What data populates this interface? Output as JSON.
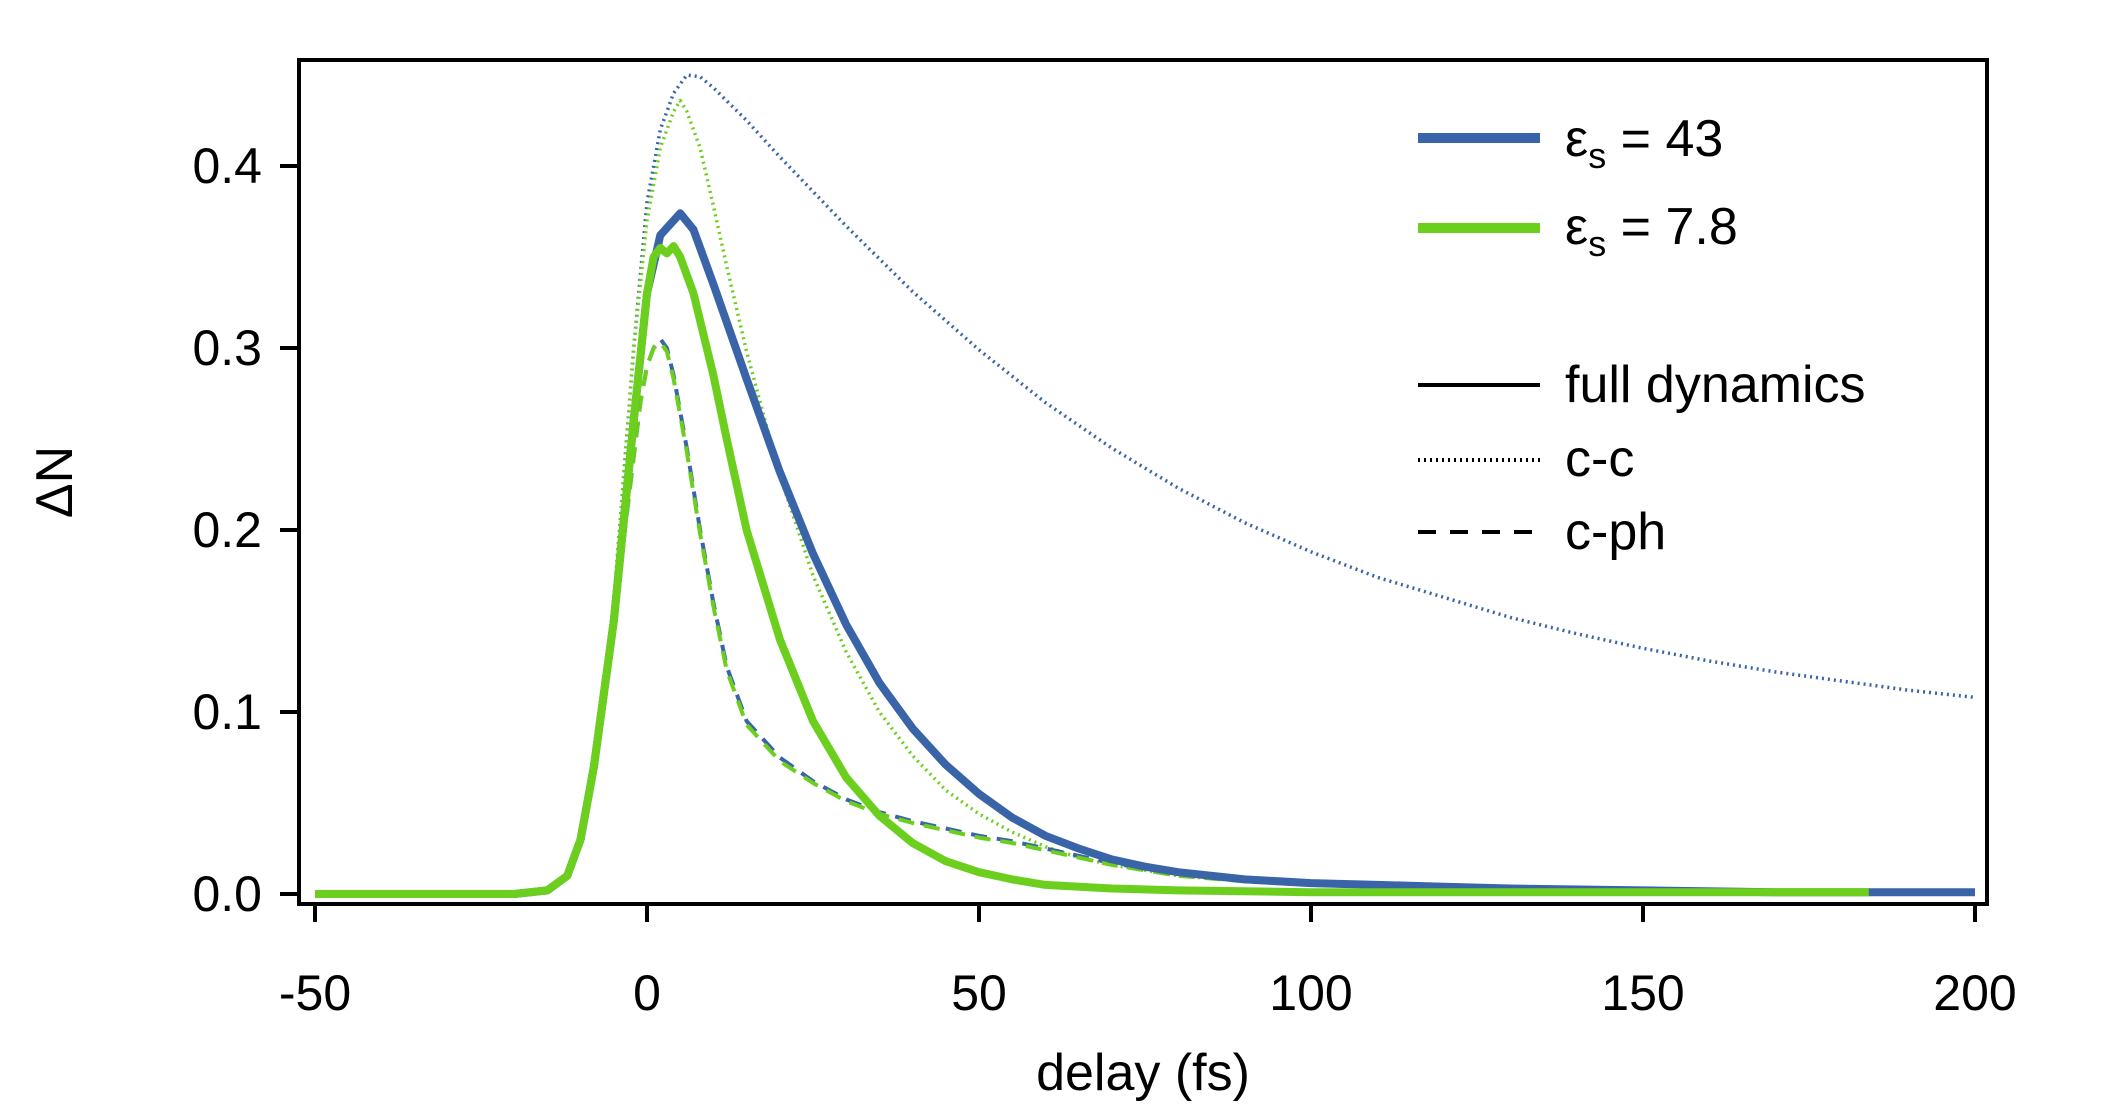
{
  "chart_data": {
    "type": "line",
    "xlabel": "delay (fs)",
    "ylabel": "ΔN",
    "xlim": [
      -50,
      200
    ],
    "ylim": [
      0,
      0.45
    ],
    "xticks": [
      -50,
      0,
      50,
      100,
      150,
      200
    ],
    "xtick_labels": [
      "-50",
      "0",
      "50",
      "100",
      "150",
      "200"
    ],
    "yticks": [
      0,
      0.1,
      0.2,
      0.3,
      0.4
    ],
    "ytick_labels": [
      "0.0",
      "0.1",
      "0.2",
      "0.3",
      "0.4"
    ],
    "grid": false,
    "legend_position": "top-right",
    "colors": {
      "blue": "#3a64a8",
      "green": "#6ccf1e",
      "black": "#000000"
    },
    "legend": {
      "series": [
        {
          "symbol": "ε",
          "sub": "s",
          "value": " = 43",
          "color": "#3a64a8"
        },
        {
          "symbol": "ε",
          "sub": "s",
          "value": " = 7.8",
          "color": "#6ccf1e"
        }
      ],
      "styles": [
        {
          "label": "full dynamics",
          "dash": "solid"
        },
        {
          "label": "c-c",
          "dash": "dotted"
        },
        {
          "label": "c-ph",
          "dash": "dashed"
        }
      ]
    },
    "series": [
      {
        "name": "εs = 43 full dynamics",
        "color": "#3a64a8",
        "style": "solid",
        "x": [
          -50,
          -20,
          -15,
          -12,
          -10,
          -8,
          -5,
          -2,
          0,
          2,
          4,
          5,
          7,
          10,
          15,
          20,
          25,
          30,
          35,
          40,
          45,
          50,
          55,
          60,
          65,
          70,
          75,
          80,
          90,
          100,
          110,
          120,
          130,
          150,
          170,
          200
        ],
        "y": [
          0,
          0,
          0.002,
          0.01,
          0.03,
          0.07,
          0.15,
          0.26,
          0.33,
          0.362,
          0.37,
          0.374,
          0.365,
          0.335,
          0.283,
          0.232,
          0.187,
          0.148,
          0.116,
          0.091,
          0.071,
          0.055,
          0.042,
          0.032,
          0.025,
          0.019,
          0.015,
          0.012,
          0.008,
          0.006,
          0.005,
          0.004,
          0.003,
          0.002,
          0.001,
          0.001
        ]
      },
      {
        "name": "εs = 7.8 full dynamics",
        "color": "#6ccf1e",
        "style": "solid",
        "x": [
          -50,
          -20,
          -15,
          -12,
          -10,
          -8,
          -5,
          -2,
          0,
          1,
          2,
          3,
          4,
          5,
          7,
          10,
          12,
          15,
          20,
          25,
          30,
          35,
          40,
          45,
          50,
          55,
          60,
          70,
          80,
          100,
          120,
          150,
          184
        ],
        "y": [
          0,
          0,
          0.002,
          0.01,
          0.03,
          0.07,
          0.15,
          0.26,
          0.33,
          0.35,
          0.355,
          0.352,
          0.356,
          0.35,
          0.33,
          0.285,
          0.25,
          0.2,
          0.14,
          0.095,
          0.064,
          0.043,
          0.028,
          0.018,
          0.012,
          0.008,
          0.005,
          0.003,
          0.002,
          0.001,
          0.001,
          0.001,
          0.001
        ]
      },
      {
        "name": "εs = 43 c-c",
        "color": "#3a64a8",
        "style": "dotted",
        "x": [
          -50,
          -20,
          -15,
          -12,
          -10,
          -8,
          -5,
          -2,
          0,
          2,
          4,
          6,
          8,
          10,
          15,
          20,
          25,
          30,
          40,
          50,
          60,
          70,
          80,
          90,
          100,
          110,
          120,
          130,
          140,
          150,
          160,
          170,
          180,
          190,
          200
        ],
        "y": [
          0,
          0,
          0.002,
          0.01,
          0.03,
          0.07,
          0.16,
          0.3,
          0.38,
          0.42,
          0.44,
          0.45,
          0.449,
          0.443,
          0.425,
          0.405,
          0.386,
          0.367,
          0.331,
          0.299,
          0.27,
          0.245,
          0.223,
          0.204,
          0.188,
          0.174,
          0.163,
          0.152,
          0.143,
          0.135,
          0.128,
          0.122,
          0.117,
          0.112,
          0.108
        ]
      },
      {
        "name": "εs = 7.8 c-c",
        "color": "#6ccf1e",
        "style": "dotted",
        "x": [
          -50,
          -20,
          -15,
          -12,
          -10,
          -8,
          -5,
          -2,
          0,
          2,
          4,
          5,
          6,
          8,
          10,
          12,
          15,
          20,
          25,
          30,
          35,
          40,
          45,
          50,
          55,
          60,
          65,
          70,
          80,
          90,
          100,
          110,
          120
        ],
        "y": [
          0,
          0,
          0.002,
          0.01,
          0.03,
          0.07,
          0.16,
          0.3,
          0.37,
          0.41,
          0.43,
          0.436,
          0.43,
          0.41,
          0.378,
          0.345,
          0.298,
          0.23,
          0.175,
          0.133,
          0.1,
          0.076,
          0.057,
          0.044,
          0.034,
          0.026,
          0.02,
          0.016,
          0.01,
          0.007,
          0.005,
          0.004,
          0.003
        ]
      },
      {
        "name": "εs = 43 c-ph",
        "color": "#3a64a8",
        "style": "dashed",
        "x": [
          -50,
          -20,
          -15,
          -12,
          -10,
          -8,
          -5,
          -2,
          -1,
          0,
          1,
          2,
          3,
          4,
          6,
          8,
          10,
          12,
          15,
          20,
          25,
          30,
          35,
          40,
          45,
          50,
          55,
          60,
          65,
          70,
          75,
          80,
          90,
          100,
          110,
          120,
          130
        ],
        "y": [
          0,
          0,
          0.002,
          0.01,
          0.03,
          0.07,
          0.15,
          0.24,
          0.27,
          0.29,
          0.3,
          0.305,
          0.3,
          0.285,
          0.245,
          0.2,
          0.16,
          0.125,
          0.095,
          0.075,
          0.062,
          0.052,
          0.045,
          0.04,
          0.036,
          0.032,
          0.029,
          0.025,
          0.021,
          0.017,
          0.014,
          0.011,
          0.008,
          0.006,
          0.004,
          0.003,
          0.002
        ]
      },
      {
        "name": "εs = 7.8 c-ph",
        "color": "#6ccf1e",
        "style": "dashed",
        "x": [
          -50,
          -20,
          -15,
          -12,
          -10,
          -8,
          -5,
          -2,
          -1,
          0,
          1,
          2,
          3,
          4,
          6,
          8,
          10,
          12,
          15,
          20,
          25,
          30,
          35,
          40,
          45,
          50,
          55,
          60,
          65,
          70,
          75,
          80,
          90,
          100,
          110,
          120,
          130
        ],
        "y": [
          0,
          0,
          0.002,
          0.01,
          0.03,
          0.07,
          0.15,
          0.24,
          0.27,
          0.29,
          0.3,
          0.303,
          0.298,
          0.283,
          0.243,
          0.198,
          0.158,
          0.123,
          0.093,
          0.073,
          0.061,
          0.051,
          0.044,
          0.039,
          0.035,
          0.031,
          0.028,
          0.024,
          0.02,
          0.016,
          0.013,
          0.01,
          0.007,
          0.005,
          0.004,
          0.003,
          0.002
        ]
      }
    ]
  }
}
